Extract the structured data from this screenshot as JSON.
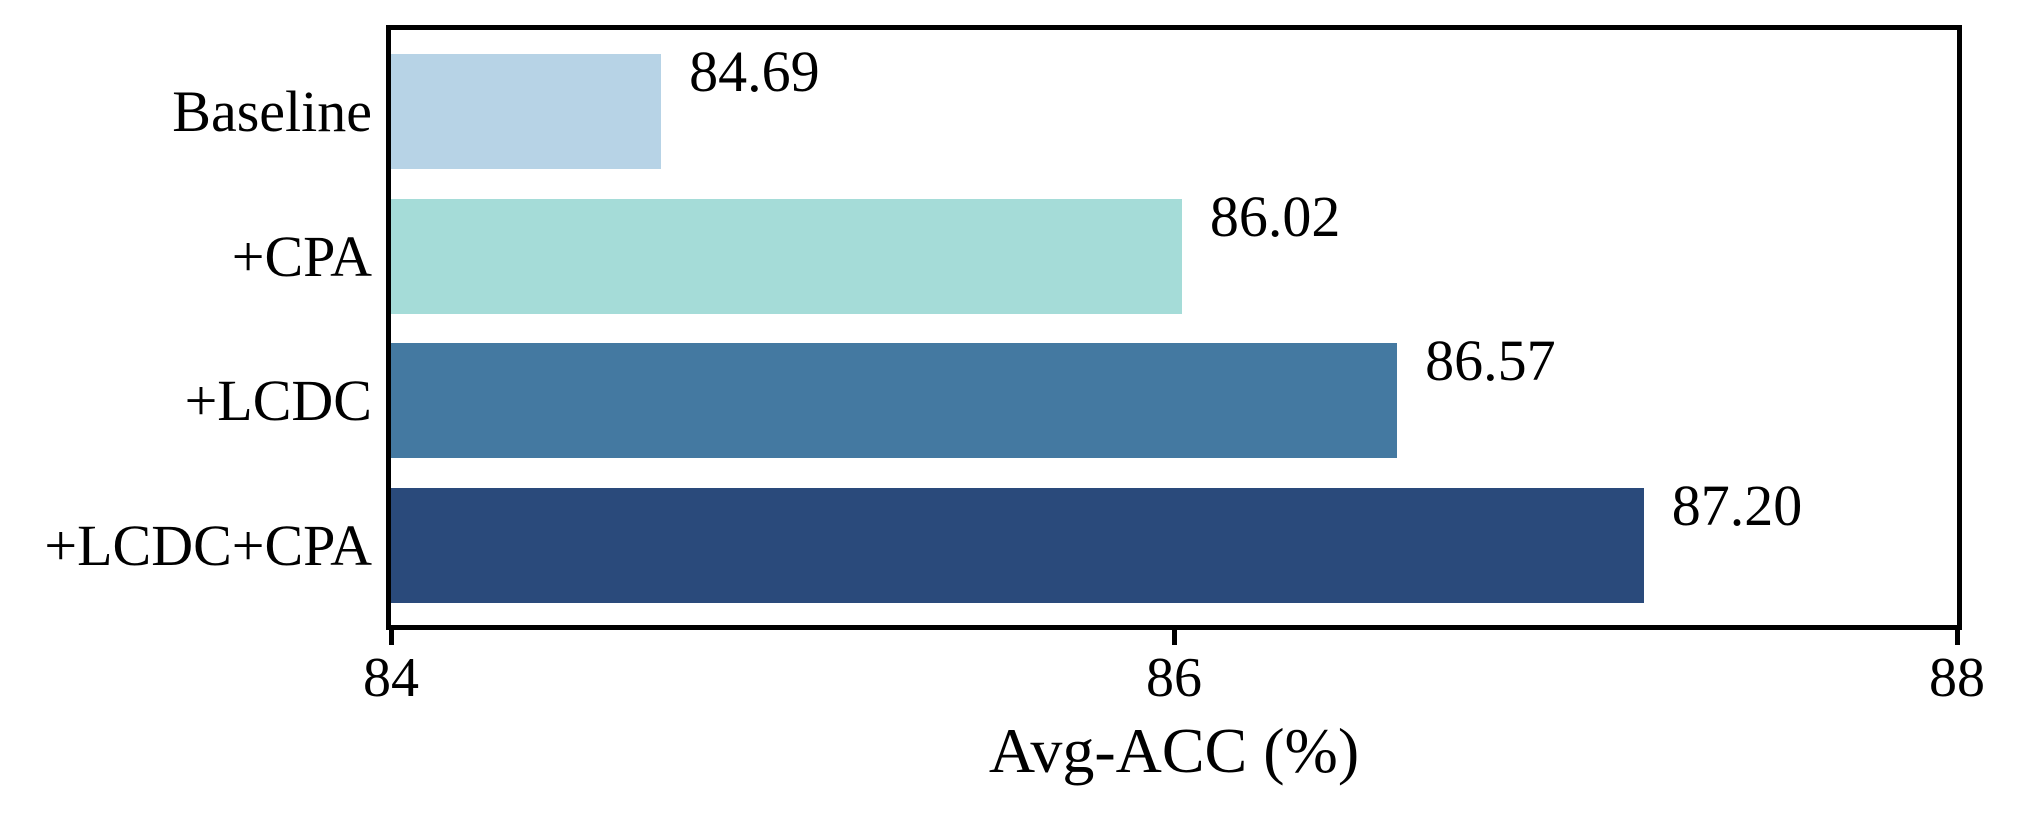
{
  "figure": {
    "background_color": "#ffffff",
    "text_color": "#000000",
    "spine_color": "#000000"
  },
  "chart_data": {
    "type": "bar",
    "orientation": "horizontal",
    "title": "",
    "categories": [
      "Baseline",
      "+CPA",
      "+LCDC",
      "+LCDC+CPA"
    ],
    "values": [
      84.69,
      86.02,
      86.57,
      87.2
    ],
    "value_labels": [
      "84.69",
      "86.02",
      "86.57",
      "87.20"
    ],
    "bar_colors": [
      "#b7d3e6",
      "#a5dcd8",
      "#4479a1",
      "#2a4a7b"
    ],
    "xlabel": "Avg-ACC (%)",
    "ylabel": "",
    "xlim": [
      84,
      88
    ],
    "xticks": [
      84,
      86,
      88
    ],
    "xtick_labels": [
      "84",
      "86",
      "88"
    ],
    "grid": false,
    "legend_position": "none"
  }
}
